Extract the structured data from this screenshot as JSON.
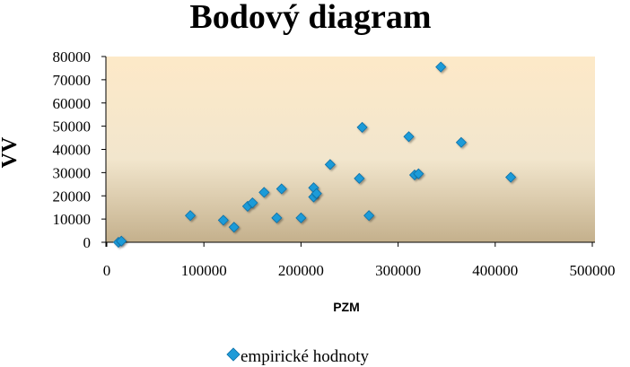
{
  "chart_data": {
    "type": "scatter",
    "title": "Bodový diagram",
    "xlabel": "PZM",
    "ylabel": "VV",
    "xlim": [
      0,
      500000
    ],
    "ylim": [
      0,
      80000
    ],
    "x_ticks": [
      "0",
      "100000",
      "200000",
      "300000",
      "400000",
      "500000"
    ],
    "y_ticks": [
      "0",
      "10000",
      "20000",
      "30000",
      "40000",
      "50000",
      "60000",
      "70000",
      "80000"
    ],
    "legend_position": "bottom",
    "grid": false,
    "colors": {
      "marker": "#1f9bd8",
      "plot_top": "#fde9c8",
      "plot_bottom": "#c4b08c"
    },
    "series": [
      {
        "name": "empirické hodnoty",
        "marker": "diamond",
        "points": [
          [
            12000,
            0
          ],
          [
            15000,
            500
          ],
          [
            86000,
            11500
          ],
          [
            120000,
            9500
          ],
          [
            131000,
            6500
          ],
          [
            145000,
            15500
          ],
          [
            150000,
            17000
          ],
          [
            162000,
            21500
          ],
          [
            175000,
            10500
          ],
          [
            180000,
            23000
          ],
          [
            200000,
            10500
          ],
          [
            213000,
            23500
          ],
          [
            213000,
            19500
          ],
          [
            216000,
            21000
          ],
          [
            230000,
            33500
          ],
          [
            260000,
            27500
          ],
          [
            263000,
            49500
          ],
          [
            270000,
            11500
          ],
          [
            311000,
            45500
          ],
          [
            317000,
            29000
          ],
          [
            321000,
            29500
          ],
          [
            344000,
            75500
          ],
          [
            365000,
            43000
          ],
          [
            416000,
            28000
          ]
        ]
      }
    ]
  }
}
